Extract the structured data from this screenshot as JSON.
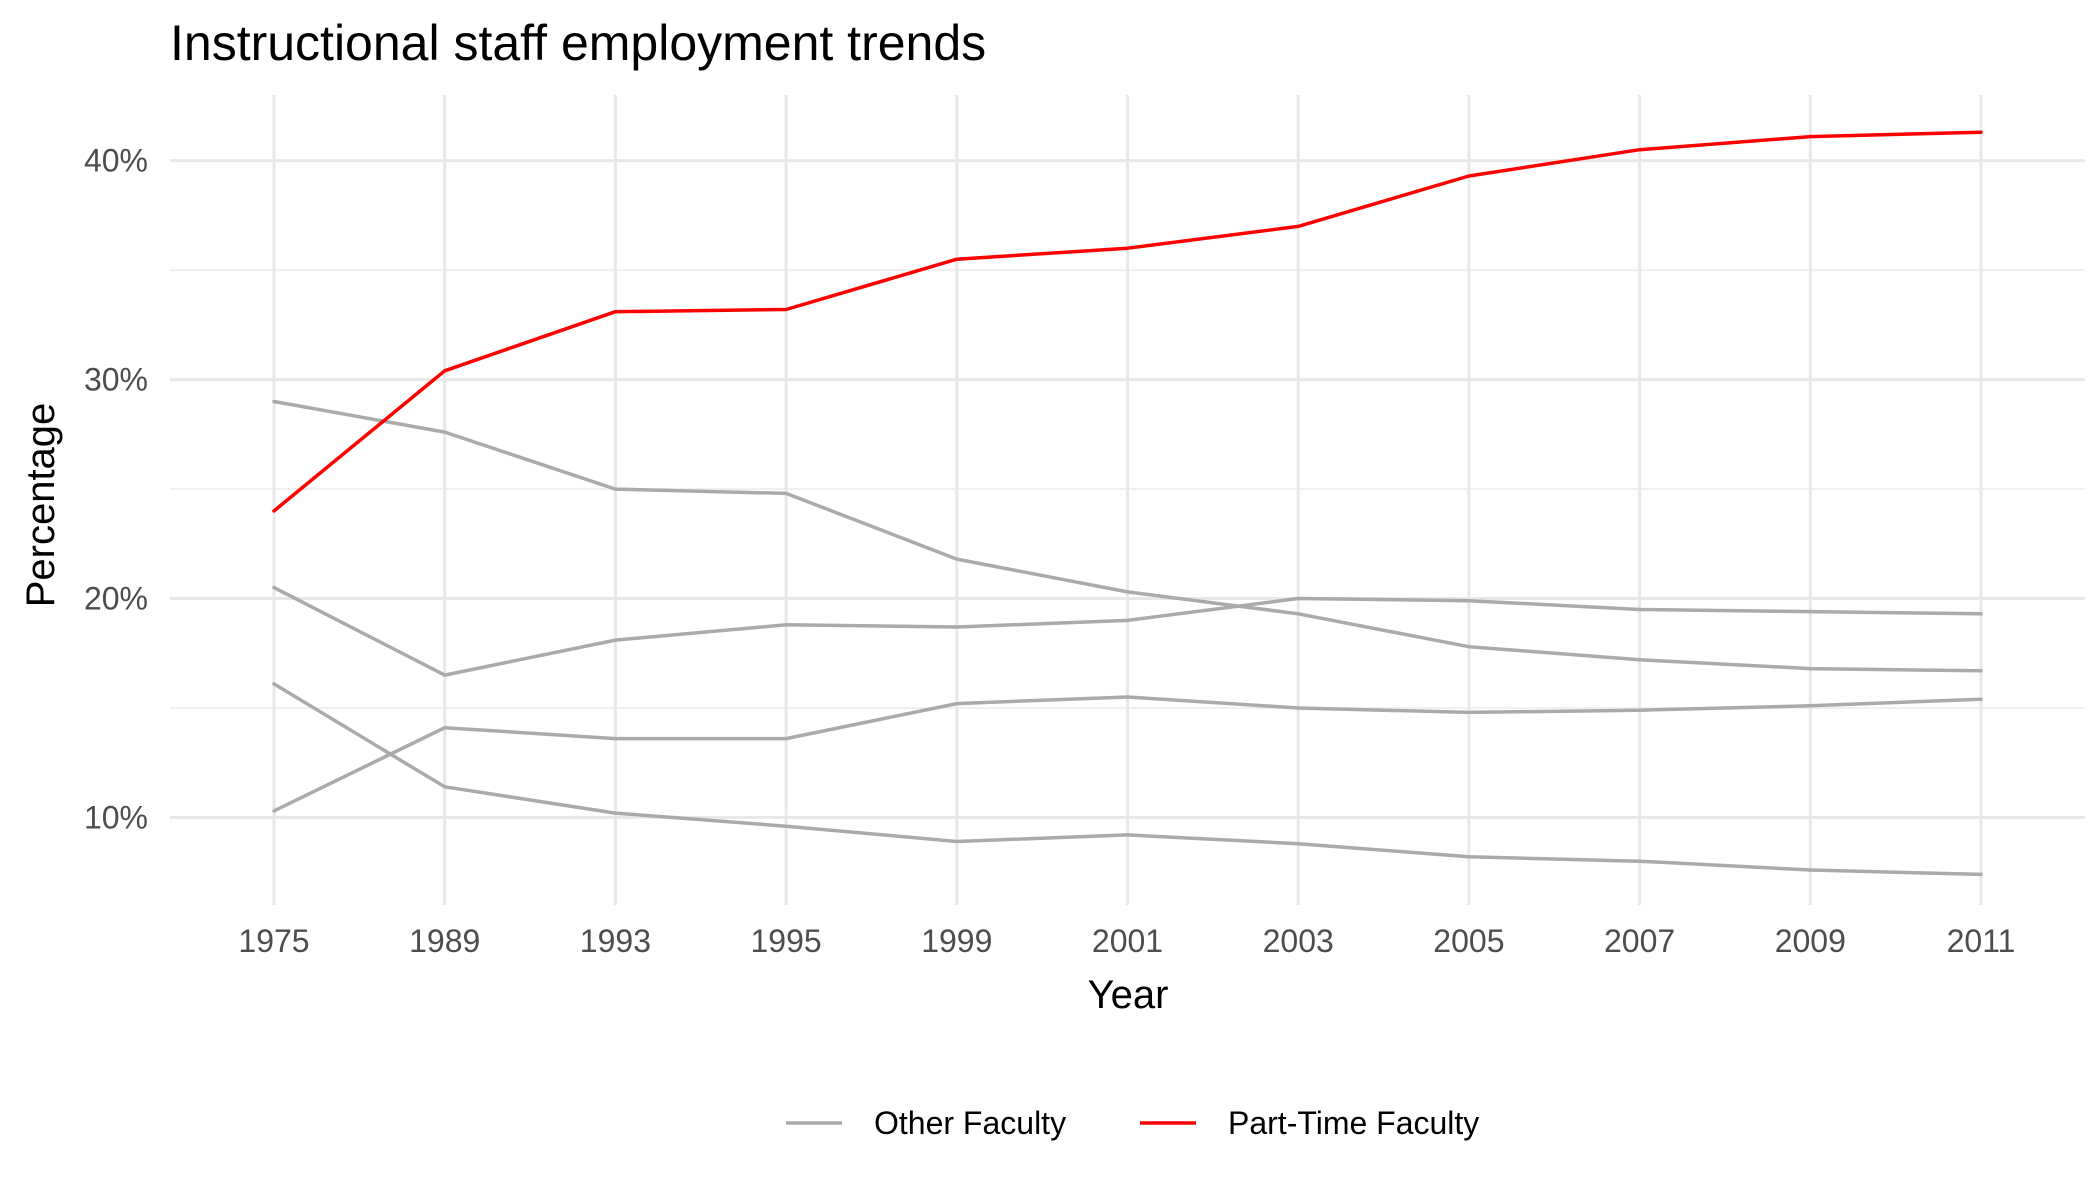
{
  "chart_data": {
    "type": "line",
    "title": "Instructional staff employment trends",
    "xlabel": "Year",
    "ylabel": "Percentage",
    "categories": [
      "1975",
      "1989",
      "1993",
      "1995",
      "1999",
      "2001",
      "2003",
      "2005",
      "2007",
      "2009",
      "2011"
    ],
    "ylim": [
      6,
      43
    ],
    "yticks": [
      10,
      20,
      30,
      40
    ],
    "ytick_labels": [
      "10%",
      "20%",
      "30%",
      "40%"
    ],
    "grid": true,
    "legend_position": "bottom",
    "legend": [
      {
        "label": "Other Faculty",
        "color": "#aaaaaa"
      },
      {
        "label": "Part-Time Faculty",
        "color": "#ff0000"
      }
    ],
    "series": [
      {
        "group": "Other Faculty",
        "color": "#aaaaaa",
        "values": [
          29.0,
          27.6,
          25.0,
          24.8,
          21.8,
          20.3,
          19.3,
          17.8,
          17.2,
          16.8,
          16.7
        ]
      },
      {
        "group": "Other Faculty",
        "color": "#aaaaaa",
        "values": [
          20.5,
          16.5,
          18.1,
          18.8,
          18.7,
          19.0,
          20.0,
          19.9,
          19.5,
          19.4,
          19.3
        ]
      },
      {
        "group": "Other Faculty",
        "color": "#aaaaaa",
        "values": [
          10.3,
          14.1,
          13.6,
          13.6,
          15.2,
          15.5,
          15.0,
          14.8,
          14.9,
          15.1,
          15.4
        ]
      },
      {
        "group": "Other Faculty",
        "color": "#aaaaaa",
        "values": [
          16.1,
          11.4,
          10.2,
          9.6,
          8.9,
          9.2,
          8.8,
          8.2,
          8.0,
          7.6,
          7.4
        ]
      },
      {
        "group": "Part-Time Faculty",
        "color": "#ff0000",
        "values": [
          24.0,
          30.4,
          33.1,
          33.2,
          35.5,
          36.0,
          37.0,
          39.3,
          40.5,
          41.1,
          41.3
        ]
      }
    ]
  }
}
